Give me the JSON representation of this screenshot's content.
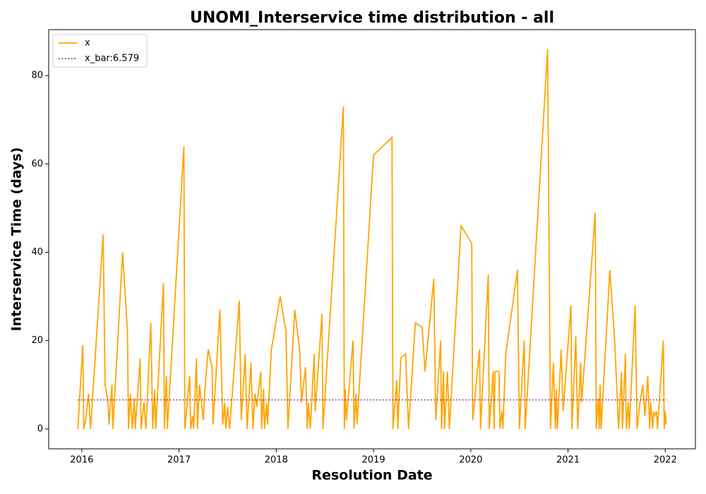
{
  "chart_data": {
    "type": "line",
    "title": "UNOMI_Interservice time distribution - all",
    "x_label": "Resolution Date",
    "y_label": "Interservice Time (days)",
    "xlim": [
      2015.66,
      2022.31
    ],
    "ylim": [
      -4.5,
      90.4
    ],
    "xticks": [
      2016,
      2017,
      2018,
      2019,
      2020,
      2021,
      2022
    ],
    "yticks": [
      0,
      20,
      40,
      60,
      80
    ],
    "legend": "upper left",
    "series": [
      {
        "name": "x",
        "color": "#ffa500",
        "style": "solid",
        "x": [
          2015.96,
          2016.01,
          2016.02,
          2016.04,
          2016.07,
          2016.09,
          2016.22,
          2016.24,
          2016.27,
          2016.28,
          2016.31,
          2016.32,
          2016.42,
          2016.47,
          2016.48,
          2016.5,
          2016.52,
          2016.54,
          2016.55,
          2016.6,
          2016.61,
          2016.64,
          2016.66,
          2016.71,
          2016.73,
          2016.75,
          2016.76,
          2016.84,
          2016.85,
          2016.87,
          2016.88,
          2017.05,
          2017.06,
          2017.11,
          2017.12,
          2017.14,
          2017.15,
          2017.18,
          2017.19,
          2017.21,
          2017.23,
          2017.25,
          2017.26,
          2017.3,
          2017.34,
          2017.35,
          2017.42,
          2017.45,
          2017.47,
          2017.48,
          2017.5,
          2017.52,
          2017.62,
          2017.64,
          2017.68,
          2017.7,
          2017.74,
          2017.76,
          2017.78,
          2017.8,
          2017.84,
          2017.85,
          2017.87,
          2017.88,
          2017.9,
          2017.91,
          2017.95,
          2018.04,
          2018.1,
          2018.12,
          2018.19,
          2018.24,
          2018.26,
          2018.3,
          2018.32,
          2018.33,
          2018.35,
          2018.39,
          2018.4,
          2018.47,
          2018.48,
          2018.69,
          2018.7,
          2018.71,
          2018.72,
          2018.79,
          2018.8,
          2018.82,
          2018.83,
          2019.0,
          2019.19,
          2019.2,
          2019.24,
          2019.25,
          2019.28,
          2019.33,
          2019.36,
          2019.43,
          2019.5,
          2019.53,
          2019.62,
          2019.64,
          2019.69,
          2019.7,
          2019.72,
          2019.73,
          2019.76,
          2019.78,
          2019.9,
          2020.01,
          2020.02,
          2020.09,
          2020.1,
          2020.18,
          2020.19,
          2020.23,
          2020.24,
          2020.25,
          2020.29,
          2020.3,
          2020.32,
          2020.33,
          2020.36,
          2020.48,
          2020.5,
          2020.55,
          2020.56,
          2020.79,
          2020.82,
          2020.85,
          2020.87,
          2020.88,
          2020.89,
          2020.93,
          2020.95,
          2021.03,
          2021.04,
          2021.08,
          2021.1,
          2021.13,
          2021.14,
          2021.28,
          2021.29,
          2021.31,
          2021.32,
          2021.33,
          2021.34,
          2021.43,
          2021.48,
          2021.52,
          2021.55,
          2021.56,
          2021.59,
          2021.6,
          2021.62,
          2021.63,
          2021.69,
          2021.71,
          2021.73,
          2021.74,
          2021.77,
          2021.79,
          2021.82,
          2021.84,
          2021.85,
          2021.87,
          2021.88,
          2021.89,
          2021.91,
          2021.92,
          2021.98,
          2021.99,
          2022.0,
          2022.01
        ],
        "values": [
          0,
          19,
          0,
          2,
          8,
          0,
          44,
          10,
          6,
          1,
          10,
          0,
          40,
          22,
          0,
          8,
          0,
          7,
          0,
          16,
          0,
          6,
          0,
          24,
          0,
          9,
          0,
          33,
          0,
          12,
          0,
          64,
          0,
          12,
          0,
          3,
          0,
          16,
          0,
          10,
          6,
          2,
          7,
          18,
          14,
          1,
          27,
          1,
          6,
          0,
          5,
          0,
          29,
          2,
          17,
          0,
          15,
          0,
          8,
          5,
          13,
          0,
          9,
          0,
          6,
          1,
          18,
          30,
          22,
          0,
          27,
          18,
          6,
          14,
          0,
          6,
          0,
          17,
          4,
          26,
          0,
          73,
          0,
          9,
          2,
          20,
          0,
          8,
          1,
          62,
          66,
          0,
          11,
          0,
          16,
          17,
          0,
          24,
          23,
          13,
          34,
          2,
          20,
          0,
          13,
          0,
          13,
          0,
          46,
          42,
          2,
          18,
          0,
          35,
          0,
          13,
          0,
          13,
          13,
          0,
          4,
          0,
          17,
          36,
          0,
          20,
          0,
          86,
          0,
          15,
          0,
          9,
          0,
          18,
          4,
          28,
          0,
          21,
          0,
          15,
          6,
          49,
          0,
          7,
          0,
          10,
          0,
          36,
          20,
          0,
          13,
          0,
          17,
          0,
          6,
          0,
          28,
          0,
          4,
          6,
          10,
          3,
          12,
          0,
          6,
          0,
          4,
          3,
          4,
          0,
          20,
          0,
          4,
          1
        ]
      },
      {
        "name": "x_bar:6.579",
        "color": "#800080",
        "style": "dotted",
        "x": [
          2015.96,
          2022.01
        ],
        "values": [
          6.579,
          6.579
        ]
      }
    ]
  }
}
